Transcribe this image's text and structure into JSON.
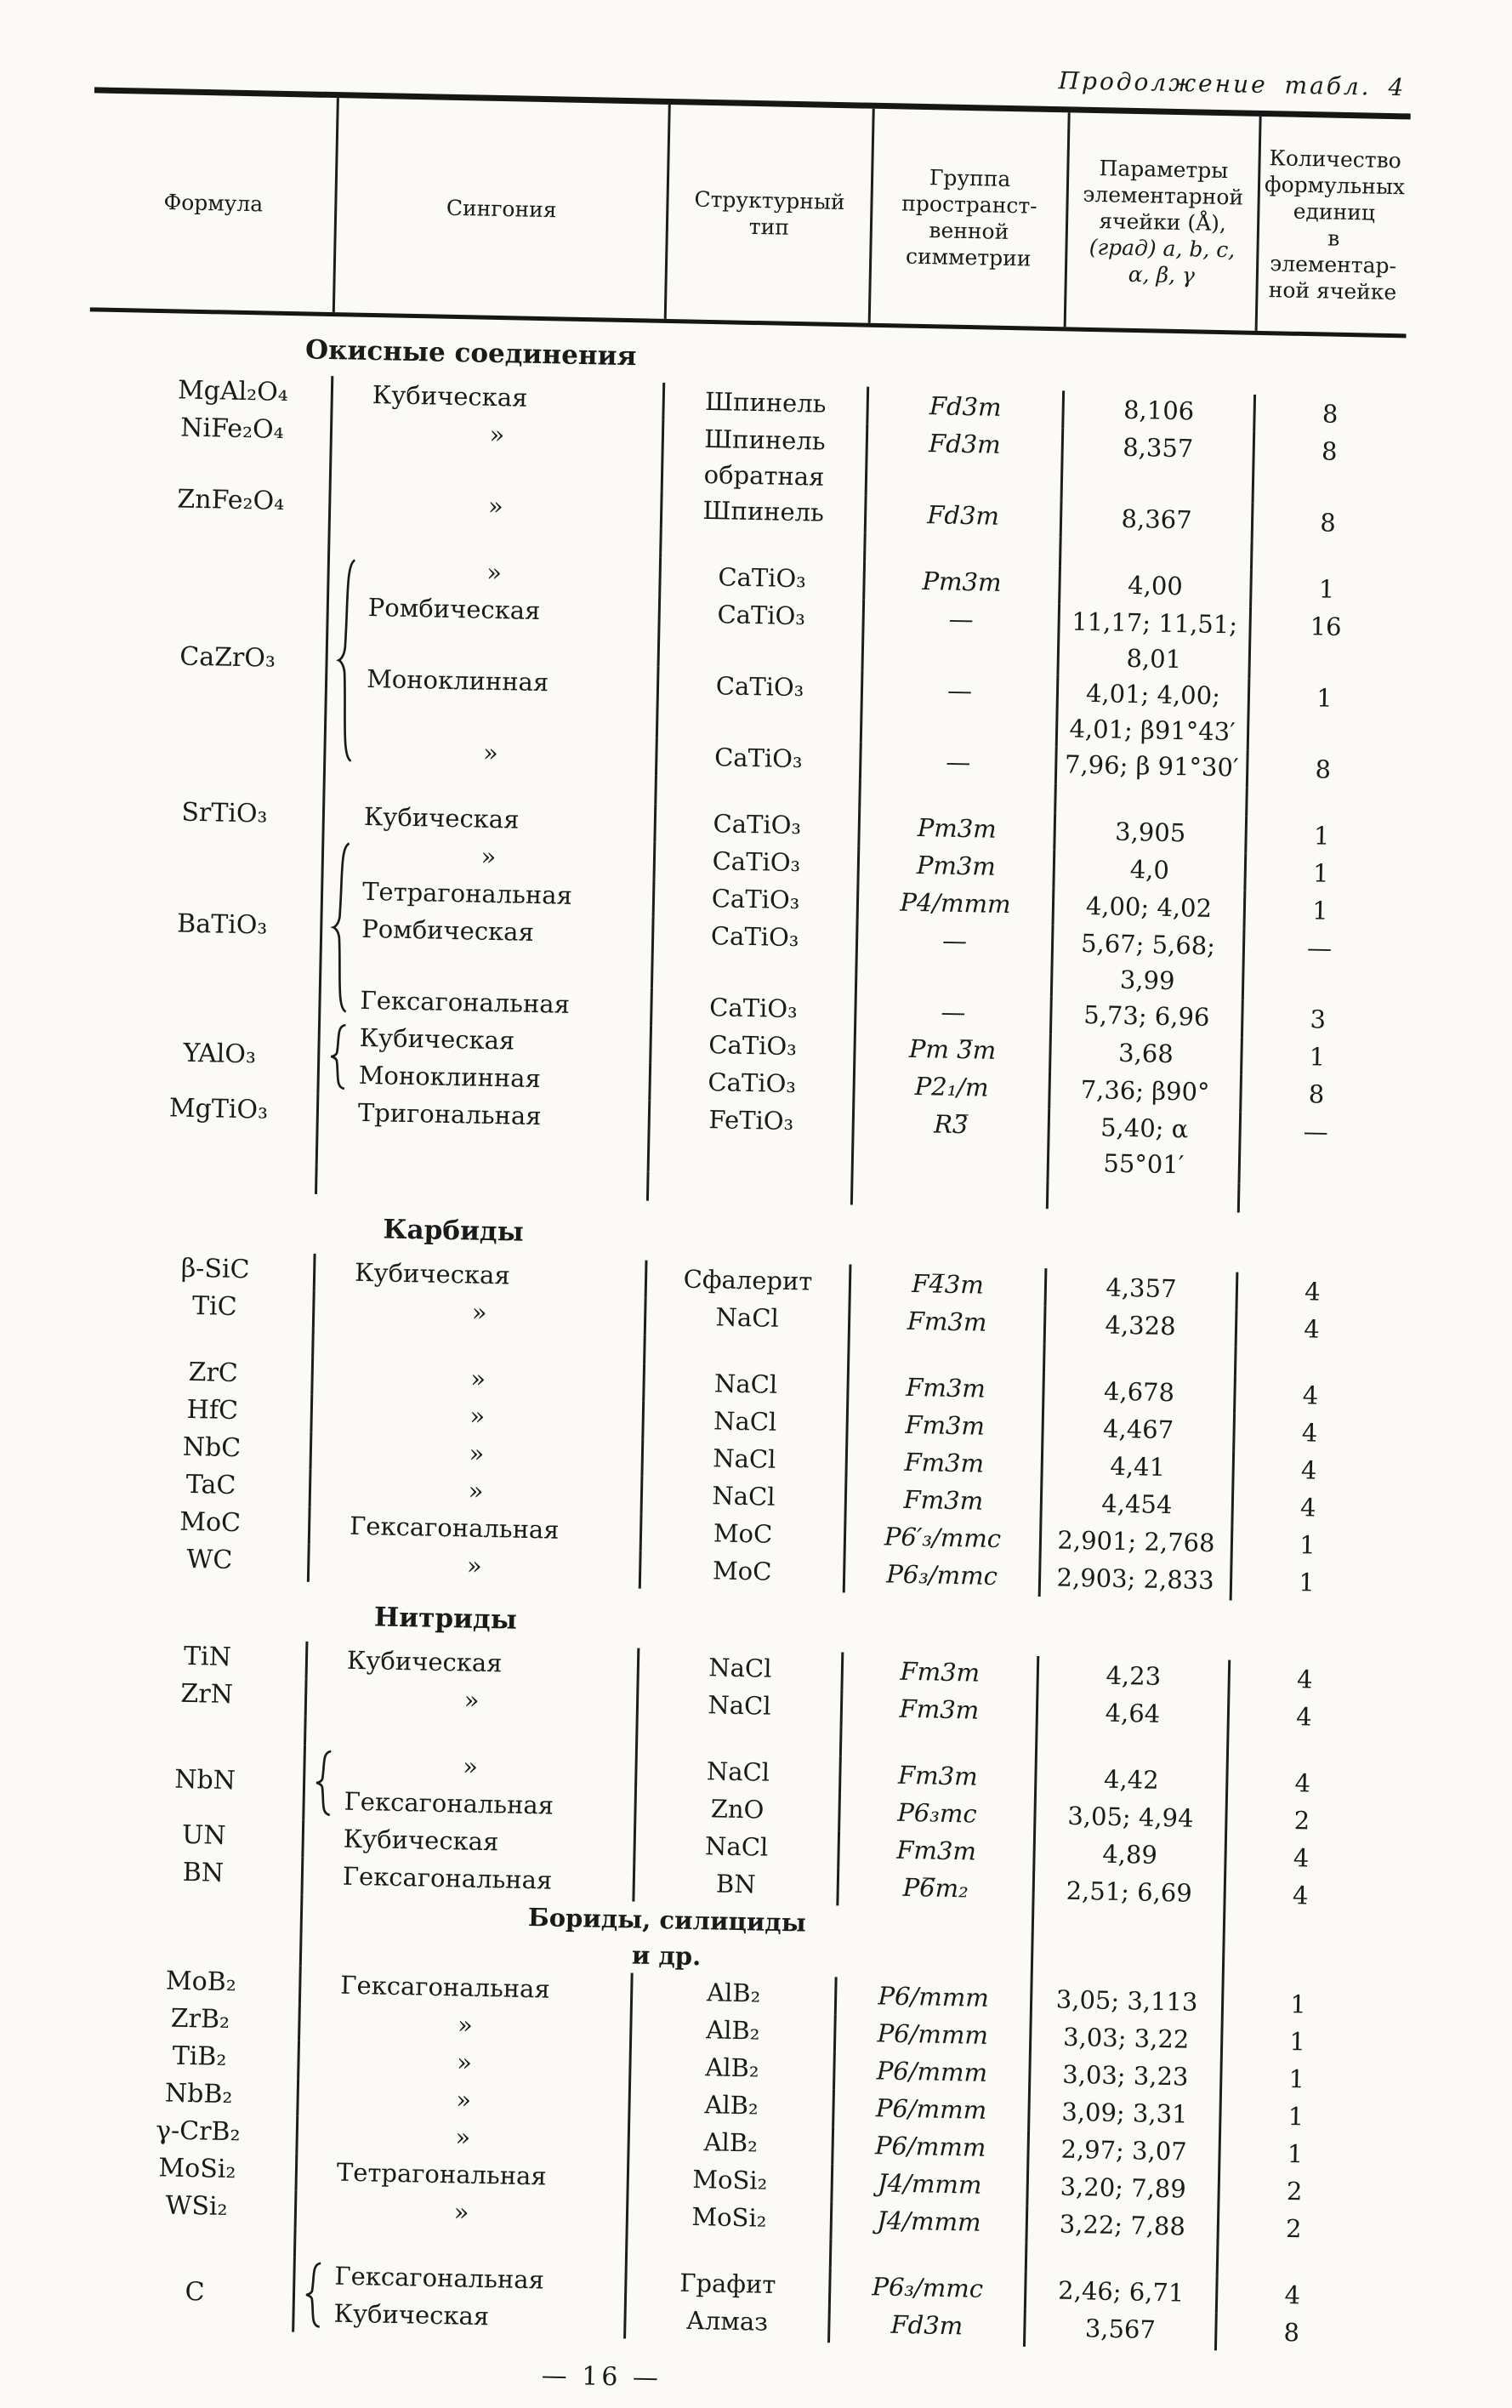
{
  "page": {
    "continuation": "Продолжение табл. 4",
    "footer": "— 16 —",
    "colors": {
      "ink": "#1a1a1a",
      "paper": "#fbfaf6"
    }
  },
  "table": {
    "headers": [
      {
        "lines": [
          "Формула"
        ]
      },
      {
        "lines": [
          "Сингония"
        ]
      },
      {
        "lines": [
          "Структурный",
          "тип"
        ]
      },
      {
        "lines": [
          "Группа",
          "пространст-",
          "венной",
          "симметрии"
        ]
      },
      {
        "lines": [
          "Параметры",
          "элементарной",
          "ячейки (Å),",
          "(град) a, b, c,",
          "α, β, γ"
        ]
      },
      {
        "lines": [
          "Количество",
          "формульных",
          "единиц",
          "в элементар-",
          "ной ячейке"
        ]
      }
    ],
    "sections": [
      {
        "title": "Окисные соединения",
        "groups": [
          {
            "formula": "MgAl₂O₄",
            "rows": [
              [
                "Кубическая",
                "Шпинель",
                "Fd3m",
                "8,106",
                "8"
              ]
            ]
          },
          {
            "formula": "NiFe₂O₄",
            "rows": [
              [
                "»",
                "Шпинель обратная",
                "Fd3m",
                "8,357",
                "8"
              ]
            ]
          },
          {
            "formula": "ZnFe₂O₄",
            "rows": [
              [
                "»",
                "Шпинель",
                "Fd3m",
                "8,367",
                "8"
              ]
            ]
          },
          {
            "spacer": true
          },
          {
            "formula": "CaZrO₃",
            "brace": true,
            "rows": [
              [
                "»",
                "CaTiO₃",
                "Pm3m",
                "4,00",
                "1"
              ],
              [
                "Ромбическая",
                "CaTiO₃",
                "—",
                "11,17; 11,51; 8,01",
                "16"
              ],
              [
                "Моноклинная",
                "CaTiO₃",
                "—",
                "4,01; 4,00; 4,01; β91°43′",
                "1"
              ],
              [
                "»",
                "CaTiO₃",
                "—",
                "7,96; β 91°30′",
                "8"
              ]
            ]
          },
          {
            "spacer": true
          },
          {
            "formula": "SrTiO₃",
            "rows": [
              [
                "Кубическая",
                "CaTiO₃",
                "Pm3m",
                "3,905",
                "1"
              ]
            ]
          },
          {
            "formula": "BaTiO₃",
            "brace": true,
            "rows": [
              [
                "»",
                "CaTiO₃",
                "Pm3m",
                "4,0",
                "1"
              ],
              [
                "Тетрагональная",
                "CaTiO₃",
                "P4/mmm",
                "4,00; 4,02",
                "1"
              ],
              [
                "Ромбическая",
                "CaTiO₃",
                "—",
                "5,67; 5,68; 3,99",
                "—"
              ],
              [
                "Гексагональная",
                "CaTiO₃",
                "—",
                "5,73; 6,96",
                "3"
              ]
            ]
          },
          {
            "formula": "YAlO₃",
            "brace": true,
            "rows": [
              [
                "Кубическая",
                "CaTiO₃",
                "Pm 3̅m",
                "3,68",
                "1"
              ],
              [
                "Моноклинная",
                "CaTiO₃",
                "P2₁/m",
                "7,36; β90°",
                "8"
              ]
            ]
          },
          {
            "formula": "MgTiO₃",
            "rows": [
              [
                "Тригональная",
                "FeTiO₃",
                "R3̅",
                "5,40; α 55°01′",
                "—"
              ]
            ]
          },
          {
            "spacer": true
          }
        ]
      },
      {
        "title": "Карбиды",
        "groups": [
          {
            "formula": "β-SiC",
            "rows": [
              [
                "Кубическая",
                "Сфалерит",
                "F4̅3m",
                "4,357",
                "4"
              ]
            ]
          },
          {
            "formula": "TiC",
            "rows": [
              [
                "»",
                "NaCl",
                "Fm3m",
                "4,328",
                "4"
              ]
            ]
          },
          {
            "spacer": true
          },
          {
            "formula": "ZrC",
            "rows": [
              [
                "»",
                "NaCl",
                "Fm3m",
                "4,678",
                "4"
              ]
            ]
          },
          {
            "formula": "HfC",
            "rows": [
              [
                "»",
                "NaCl",
                "Fm3m",
                "4,467",
                "4"
              ]
            ]
          },
          {
            "formula": "NbC",
            "rows": [
              [
                "»",
                "NaCl",
                "Fm3m",
                "4,41",
                "4"
              ]
            ]
          },
          {
            "formula": "TaC",
            "rows": [
              [
                "»",
                "NaCl",
                "Fm3m",
                "4,454",
                "4"
              ]
            ]
          },
          {
            "formula": "MoC",
            "rows": [
              [
                "Гексагональная",
                "MoC",
                "P6′₃/mmc",
                "2,901; 2,768",
                "1"
              ]
            ]
          },
          {
            "formula": "WC",
            "rows": [
              [
                "»",
                "MoC",
                "P6₃/mmc",
                "2,903; 2,833",
                "1"
              ]
            ]
          }
        ]
      },
      {
        "title": "Нитриды",
        "groups": [
          {
            "formula": "TiN",
            "rows": [
              [
                "Кубическая",
                "NaCl",
                "Fm3m",
                "4,23",
                "4"
              ]
            ]
          },
          {
            "formula": "ZrN",
            "rows": [
              [
                "»",
                "NaCl",
                "Fm3m",
                "4,64",
                "4"
              ]
            ]
          },
          {
            "spacer": true
          },
          {
            "formula": "NbN",
            "brace": true,
            "rows": [
              [
                "»",
                "NaCl",
                "Fm3m",
                "4,42",
                "4"
              ],
              [
                "Гексагональная",
                "ZnO",
                "P6₃mc",
                "3,05; 4,94",
                "2"
              ]
            ]
          },
          {
            "formula": "UN",
            "rows": [
              [
                "Кубическая",
                "NaCl",
                "Fm3m",
                "4,89",
                "4"
              ]
            ]
          },
          {
            "formula": "BN",
            "rows": [
              [
                "Гексагональная",
                "BN",
                "P6̅m₂",
                "2,51; 6,69",
                "4"
              ]
            ]
          }
        ]
      },
      {
        "title": "Бориды, силициды и др.",
        "inline": true,
        "title_lines": [
          "Бориды, силициды",
          "и др."
        ],
        "groups": [
          {
            "formula": "MoB₂",
            "rows": [
              [
                "Гексагональная",
                "AlB₂",
                "P6/mmm",
                "3,05; 3,113",
                "1"
              ]
            ]
          },
          {
            "formula": "ZrB₂",
            "rows": [
              [
                "»",
                "AlB₂",
                "P6/mmm",
                "3,03; 3,22",
                "1"
              ]
            ]
          },
          {
            "formula": "TiB₂",
            "rows": [
              [
                "»",
                "AlB₂",
                "P6/mmm",
                "3,03; 3,23",
                "1"
              ]
            ]
          },
          {
            "formula": "NbB₂",
            "rows": [
              [
                "»",
                "AlB₂",
                "P6/mmm",
                "3,09; 3,31",
                "1"
              ]
            ]
          },
          {
            "formula": "γ-CrB₂",
            "rows": [
              [
                "»",
                "AlB₂",
                "P6/mmm",
                "2,97; 3,07",
                "1"
              ]
            ]
          },
          {
            "formula": "MoSi₂",
            "rows": [
              [
                "Тетрагональная",
                "MoSi₂",
                "J4/mmm",
                "3,20; 7,89",
                "2"
              ]
            ]
          },
          {
            "formula": "WSi₂",
            "rows": [
              [
                "»",
                "MoSi₂",
                "J4/mmm",
                "3,22; 7,88",
                "2"
              ]
            ]
          },
          {
            "spacer": true
          },
          {
            "formula": "C",
            "brace": true,
            "rows": [
              [
                "Гексагональная",
                "Графит",
                "P6₃/mmc",
                "2,46; 6,71",
                "4"
              ],
              [
                "Кубическая",
                "Алмаз",
                "Fd3m",
                "3,567",
                "8"
              ]
            ]
          }
        ]
      }
    ]
  }
}
